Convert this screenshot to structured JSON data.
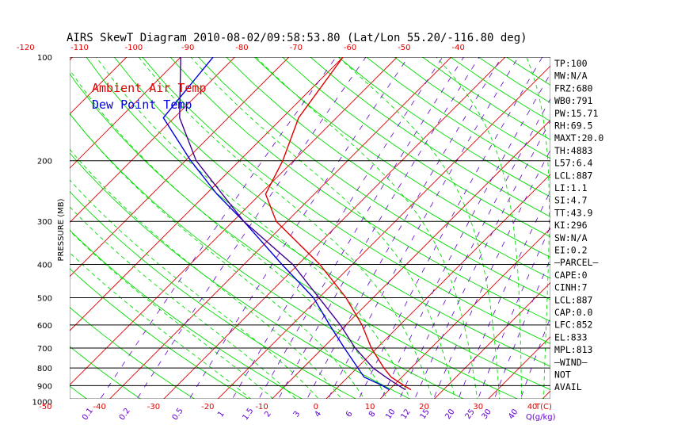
{
  "chart_data": {
    "type": "line",
    "title": "AIRS SkewT Diagram 2010-08-02/09:58:53.80 (Lat/Lon 55.20/-116.80 deg)",
    "ylabel": "PRESSURE (MB)",
    "pressure_ticks": [
      100,
      200,
      300,
      400,
      500,
      600,
      700,
      800,
      900,
      1000
    ],
    "top_temp_ticks": [
      -120,
      -110,
      -100,
      -90,
      -80,
      -70,
      -60,
      -50,
      -40
    ],
    "bottom_temp_ticks": [
      -50,
      -40,
      -30,
      -20,
      -10,
      0,
      10,
      20,
      30,
      40
    ],
    "bottom_temp_unit": "T(C)",
    "mixing_ratio_ticks": [
      "0.1",
      "0.2",
      "0.5",
      "1",
      "1.5",
      "2",
      "3",
      "4",
      "6",
      "8",
      "10",
      "12",
      "15",
      "20",
      "25",
      "30",
      "40"
    ],
    "mixing_ratio_unit": "Q(g/kg)",
    "legend": [
      "Ambient Air Temp",
      "Dew Point Temp"
    ],
    "colors": {
      "temperature": "#e00000",
      "dewpoint": "#0000e0",
      "parcel": "#400090",
      "isotherm": "#e00000",
      "dry_adiabat": "#00dd00",
      "moist_adiabat": "#00dd00",
      "mixing_ratio": "#6000d0",
      "isobar": "#000000"
    },
    "series": [
      {
        "name": "Ambient Air Temp",
        "p": [
          925,
          900,
          850,
          800,
          700,
          600,
          500,
          400,
          300,
          250,
          200,
          150,
          100
        ],
        "t": [
          14,
          12,
          8,
          5,
          -1,
          -7,
          -15,
          -26,
          -42,
          -49,
          -52,
          -57,
          -60
        ]
      },
      {
        "name": "Dew Point Temp",
        "p": [
          925,
          900,
          850,
          700,
          600,
          500,
          400,
          300,
          250,
          200,
          150,
          100
        ],
        "t": [
          10,
          8,
          3,
          -6,
          -13,
          -21,
          -33,
          -48,
          -58,
          -69,
          -82,
          -84
        ]
      },
      {
        "p": [
          925,
          900,
          850,
          800,
          700,
          600,
          500,
          400,
          300,
          250,
          200,
          150,
          100
        ],
        "t": [
          13,
          11,
          7,
          3,
          -4,
          -11,
          -20,
          -31,
          -48,
          -57,
          -68,
          -79,
          -90
        ]
      }
    ]
  },
  "indices": [
    "TP:100",
    "MW:N/A",
    "FRZ:680",
    "WB0:791",
    "PW:15.71",
    "RH:69.5",
    "MAXT:20.0",
    "TH:4883",
    "L57:6.4",
    "LCL:887",
    "LI:1.1",
    "SI:4.7",
    "TT:43.9",
    "KI:296",
    "SW:N/A",
    "EI:0.2",
    "—PARCEL—",
    "CAPE:0",
    "CINH:7",
    "LCL:887",
    "CAP:0.0",
    "LFC:852",
    "EL:833",
    "MPL:813",
    "—WIND—",
    "NOT",
    "AVAIL"
  ]
}
